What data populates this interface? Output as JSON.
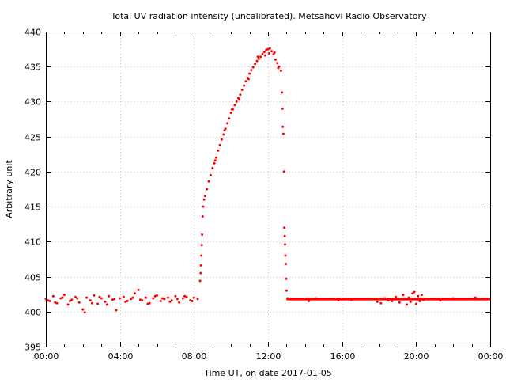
{
  "chart_data": {
    "type": "scatter",
    "title": "Total UV radiation intensity (uncalibrated). Metsähovi Radio Observatory",
    "xlabel": "Time UT, on date 2017-01-05",
    "ylabel": "Arbitrary unit",
    "xlim": [
      0,
      24
    ],
    "ylim": [
      395,
      440
    ],
    "x_ticks": [
      0,
      4,
      8,
      12,
      16,
      20,
      24
    ],
    "x_tick_labels": [
      "00:00",
      "04:00",
      "08:00",
      "12:00",
      "16:00",
      "20:00",
      "00:00"
    ],
    "y_ticks": [
      395,
      400,
      405,
      410,
      415,
      420,
      425,
      430,
      435,
      440
    ],
    "y_tick_labels": [
      "395",
      "400",
      "405",
      "410",
      "415",
      "420",
      "425",
      "430",
      "435",
      "440"
    ],
    "grid": true,
    "marker_color": "#ff0000",
    "flat_segments": [
      {
        "from": 13.0,
        "to": 24.0,
        "value": 401.8
      }
    ],
    "series": [
      {
        "name": "UV intensity",
        "points": [
          [
            0.0,
            401.8
          ],
          [
            0.2,
            401.5
          ],
          [
            0.4,
            402.2
          ],
          [
            0.6,
            401.2
          ],
          [
            0.8,
            401.9
          ],
          [
            1.0,
            402.4
          ],
          [
            1.2,
            401.0
          ],
          [
            1.4,
            401.7
          ],
          [
            1.6,
            402.1
          ],
          [
            1.8,
            401.3
          ],
          [
            2.0,
            400.3
          ],
          [
            2.2,
            402.0
          ],
          [
            2.4,
            401.6
          ],
          [
            2.6,
            402.3
          ],
          [
            2.8,
            401.1
          ],
          [
            3.0,
            401.9
          ],
          [
            3.2,
            401.4
          ],
          [
            3.4,
            402.2
          ],
          [
            3.6,
            401.7
          ],
          [
            3.8,
            400.2
          ],
          [
            4.0,
            401.9
          ],
          [
            4.2,
            402.1
          ],
          [
            4.4,
            401.5
          ],
          [
            4.6,
            401.8
          ],
          [
            4.8,
            402.6
          ],
          [
            5.0,
            403.1
          ],
          [
            5.2,
            401.6
          ],
          [
            5.4,
            402.0
          ],
          [
            5.6,
            401.2
          ],
          [
            5.8,
            401.9
          ],
          [
            6.0,
            402.3
          ],
          [
            6.2,
            401.5
          ],
          [
            6.4,
            401.8
          ],
          [
            6.6,
            402.0
          ],
          [
            6.8,
            401.6
          ],
          [
            7.0,
            402.2
          ],
          [
            7.2,
            401.3
          ],
          [
            7.4,
            401.9
          ],
          [
            7.6,
            402.1
          ],
          [
            7.8,
            401.6
          ],
          [
            8.0,
            402.0
          ],
          [
            8.2,
            401.8
          ],
          [
            0.1,
            401.6
          ],
          [
            0.5,
            401.3
          ],
          [
            0.9,
            402.0
          ],
          [
            1.3,
            401.5
          ],
          [
            1.7,
            401.9
          ],
          [
            2.1,
            399.9
          ],
          [
            2.5,
            401.2
          ],
          [
            2.9,
            402.1
          ],
          [
            3.3,
            401.0
          ],
          [
            3.7,
            401.8
          ],
          [
            4.3,
            401.4
          ],
          [
            4.7,
            402.0
          ],
          [
            5.1,
            401.7
          ],
          [
            5.5,
            401.1
          ],
          [
            5.9,
            402.2
          ],
          [
            6.3,
            401.9
          ],
          [
            6.7,
            401.4
          ],
          [
            7.1,
            401.8
          ],
          [
            7.5,
            402.2
          ],
          [
            7.9,
            401.5
          ],
          [
            8.33,
            404.4
          ],
          [
            8.36,
            405.5
          ],
          [
            8.38,
            406.6
          ],
          [
            8.4,
            408.0
          ],
          [
            8.42,
            409.5
          ],
          [
            8.44,
            411.0
          ],
          [
            8.47,
            413.6
          ],
          [
            8.5,
            415.0
          ],
          [
            8.55,
            416.0
          ],
          [
            8.6,
            416.5
          ],
          [
            8.7,
            417.5
          ],
          [
            8.8,
            418.6
          ],
          [
            8.9,
            419.5
          ],
          [
            9.0,
            420.5
          ],
          [
            9.1,
            421.2
          ],
          [
            9.2,
            422.0
          ],
          [
            9.3,
            423.0
          ],
          [
            9.4,
            423.8
          ],
          [
            9.5,
            424.6
          ],
          [
            9.6,
            425.3
          ],
          [
            9.7,
            426.1
          ],
          [
            9.8,
            426.9
          ],
          [
            9.9,
            427.6
          ],
          [
            10.0,
            428.4
          ],
          [
            10.1,
            428.9
          ],
          [
            10.2,
            429.5
          ],
          [
            10.3,
            430.0
          ],
          [
            10.4,
            430.5
          ],
          [
            10.5,
            431.0
          ],
          [
            10.6,
            431.7
          ],
          [
            10.7,
            432.3
          ],
          [
            10.8,
            432.9
          ],
          [
            10.9,
            433.4
          ],
          [
            11.0,
            434.0
          ],
          [
            11.1,
            434.5
          ],
          [
            11.2,
            434.9
          ],
          [
            11.3,
            435.4
          ],
          [
            11.4,
            435.8
          ],
          [
            11.5,
            436.1
          ],
          [
            11.6,
            436.4
          ],
          [
            11.7,
            436.8
          ],
          [
            11.8,
            437.1
          ],
          [
            11.9,
            437.4
          ],
          [
            12.0,
            437.5
          ],
          [
            12.1,
            437.6
          ],
          [
            12.2,
            437.2
          ],
          [
            12.3,
            436.8
          ],
          [
            12.4,
            436.0
          ],
          [
            12.5,
            435.5
          ],
          [
            12.6,
            435.0
          ],
          [
            12.7,
            434.4
          ],
          [
            12.75,
            431.3
          ],
          [
            12.78,
            429.0
          ],
          [
            12.8,
            426.4
          ],
          [
            12.83,
            425.4
          ],
          [
            12.86,
            420.0
          ],
          [
            12.88,
            412.0
          ],
          [
            12.9,
            410.8
          ],
          [
            12.92,
            409.6
          ],
          [
            12.94,
            408.0
          ],
          [
            12.96,
            406.8
          ],
          [
            12.98,
            404.7
          ],
          [
            13.0,
            403.0
          ],
          [
            13.05,
            401.9
          ],
          [
            10.05,
            428.9
          ],
          [
            10.45,
            430.3
          ],
          [
            10.95,
            433.2
          ],
          [
            11.45,
            436.4
          ],
          [
            11.85,
            436.6
          ],
          [
            12.05,
            436.9
          ],
          [
            12.35,
            437.0
          ],
          [
            12.55,
            434.8
          ],
          [
            9.65,
            425.9
          ],
          [
            9.15,
            421.6
          ],
          [
            14.2,
            401.5
          ],
          [
            14.6,
            401.9
          ],
          [
            15.8,
            401.6
          ],
          [
            16.5,
            401.7
          ],
          [
            17.9,
            401.4
          ],
          [
            18.1,
            401.2
          ],
          [
            18.3,
            401.9
          ],
          [
            18.5,
            401.6
          ],
          [
            18.7,
            401.5
          ],
          [
            18.9,
            402.1
          ],
          [
            19.1,
            401.3
          ],
          [
            19.3,
            402.4
          ],
          [
            19.5,
            401.0
          ],
          [
            19.6,
            402.0
          ],
          [
            19.7,
            401.4
          ],
          [
            19.8,
            402.6
          ],
          [
            19.9,
            402.8
          ],
          [
            20.0,
            401.1
          ],
          [
            20.1,
            402.2
          ],
          [
            20.2,
            401.5
          ],
          [
            20.3,
            402.4
          ],
          [
            20.4,
            401.7
          ],
          [
            21.3,
            401.6
          ],
          [
            22.0,
            401.9
          ],
          [
            23.2,
            402.0
          ]
        ]
      }
    ]
  }
}
